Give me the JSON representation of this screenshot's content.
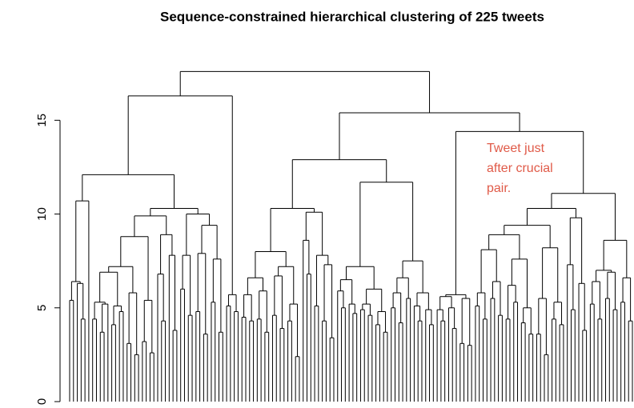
{
  "chart_data": {
    "type": "dendrogram",
    "title": "Sequence-constrained hierarchical clustering of 225 tweets",
    "ylim": [
      0,
      18
    ],
    "yticks": [
      0,
      5,
      10,
      15
    ],
    "color": "#000000",
    "annotation": [
      "Tweet just",
      "after crucial",
      "pair."
    ],
    "annotation_color": "#e05a48",
    "tree": [
      17.6,
      [
        16.3,
        [
          12.1,
          [
            10.7,
            [
              6.4,
              [
                5.4,
                0,
                0
              ],
              [
                6.3,
                0,
                [
                  4.4,
                  0,
                  0
                ]
              ]
            ],
            0
          ],
          [
            10.3,
            [
              9.9,
              [
                8.8,
                [
                  7.2,
                  [
                    6.9,
                    [
                      5.3,
                      [
                        4.4,
                        0,
                        0
                      ],
                      [
                        5.2,
                        [
                          3.7,
                          0,
                          0
                        ],
                        0
                      ]
                    ],
                    [
                      5.1,
                      [
                        4.1,
                        0,
                        0
                      ],
                      [
                        4.8,
                        0,
                        0
                      ]
                    ]
                  ],
                  [
                    5.8,
                    [
                      3.1,
                      0,
                      0
                    ],
                    [
                      2.5,
                      0,
                      0
                    ]
                  ]
                ],
                [
                  5.4,
                  [
                    3.2,
                    0,
                    0
                  ],
                  [
                    2.6,
                    0,
                    0
                  ]
                ]
              ],
              [
                8.9,
                [
                  6.8,
                  0,
                  [
                    4.3,
                    0,
                    0
                  ]
                ],
                [
                  7.8,
                  0,
                  [
                    3.8,
                    0,
                    0
                  ]
                ]
              ]
            ],
            [
              10.0,
              [
                7.8,
                [
                  6.0,
                  0,
                  0
                ],
                [
                  4.6,
                  0,
                  0
                ]
              ],
              [
                9.4,
                [
                  7.9,
                  [
                    4.8,
                    0,
                    0
                  ],
                  [
                    3.6,
                    0,
                    0
                  ]
                ],
                [
                  7.6,
                  [
                    5.3,
                    0,
                    0
                  ],
                  [
                    3.7,
                    0,
                    0
                  ]
                ]
              ]
            ]
          ]
        ],
        [
          5.7,
          [
            5.1,
            0,
            0
          ],
          [
            4.8,
            0,
            0
          ]
        ]
      ],
      [
        15.4,
        [
          12.9,
          [
            10.3,
            [
              8.0,
              [
                6.6,
                [
                  5.7,
                  [
                    4.5,
                    0,
                    0
                  ],
                  [
                    4.3,
                    0,
                    0
                  ]
                ],
                [
                  5.9,
                  [
                    4.4,
                    0,
                    0
                  ],
                  [
                    3.7,
                    0,
                    0
                  ]
                ]
              ],
              [
                7.2,
                [
                  6.7,
                  [
                    4.6,
                    0,
                    0
                  ],
                  [
                    3.9,
                    0,
                    0
                  ]
                ],
                [
                  5.2,
                  [
                    4.3,
                    0,
                    0
                  ],
                  [
                    2.4,
                    0,
                    0
                  ]
                ]
              ]
            ],
            [
              10.1,
              [
                8.6,
                0,
                [
                  6.8,
                  0,
                  0
                ]
              ],
              [
                7.8,
                [
                  5.1,
                  0,
                  0
                ],
                [
                  7.3,
                  [
                    4.3,
                    0,
                    0
                  ],
                  [
                    3.4,
                    0,
                    0
                  ]
                ]
              ]
            ]
          ],
          [
            11.7,
            [
              7.2,
              [
                6.5,
                [
                  5.9,
                  0,
                  [
                    5.0,
                    0,
                    0
                  ]
                ],
                [
                  5.2,
                  0,
                  [
                    4.7,
                    0,
                    0
                  ]
                ]
              ],
              [
                6.0,
                [
                  5.2,
                  [
                    4.9,
                    0,
                    0
                  ],
                  [
                    4.6,
                    0,
                    0
                  ]
                ],
                [
                  4.8,
                  [
                    4.1,
                    0,
                    0
                  ],
                  [
                    3.7,
                    0,
                    0
                  ]
                ]
              ]
            ],
            [
              7.5,
              [
                6.6,
                [
                  5.8,
                  [
                    5.0,
                    0,
                    0
                  ],
                  [
                    4.2,
                    0,
                    0
                  ]
                ],
                [
                  5.5,
                  0,
                  0
                ]
              ],
              [
                5.8,
                [
                  5.1,
                  0,
                  [
                    4.3,
                    0,
                    0
                  ]
                ],
                [
                  4.9,
                  0,
                  [
                    4.1,
                    0,
                    0
                  ]
                ]
              ]
            ]
          ]
        ],
        [
          14.4,
          [
            5.7,
            [
              5.6,
              [
                4.9,
                0,
                [
                  4.3,
                  0,
                  0
                ]
              ],
              [
                5.0,
                0,
                [
                  3.9,
                  0,
                  0
                ]
              ]
            ],
            [
              5.5,
              [
                3.1,
                0,
                0
              ],
              [
                3.0,
                0,
                0
              ]
            ]
          ],
          [
            11.1,
            [
              10.3,
              [
                9.4,
                [
                  8.9,
                  [
                    8.1,
                    [
                      5.8,
                      [
                        5.1,
                        0,
                        0
                      ],
                      [
                        4.4,
                        0,
                        0
                      ]
                    ],
                    [
                      6.4,
                      [
                        5.5,
                        0,
                        0
                      ],
                      [
                        4.6,
                        0,
                        0
                      ]
                    ]
                  ],
                  [
                    7.6,
                    [
                      6.2,
                      [
                        4.4,
                        0,
                        0
                      ],
                      [
                        5.3,
                        0,
                        0
                      ]
                    ],
                    [
                      5.0,
                      [
                        4.2,
                        0,
                        0
                      ],
                      [
                        3.6,
                        0,
                        0
                      ]
                    ]
                  ]
                ],
                [
                  8.2,
                  [
                    5.5,
                    [
                      3.6,
                      0,
                      0
                    ],
                    [
                      2.5,
                      0,
                      0
                    ]
                  ],
                  [
                    5.3,
                    [
                      4.4,
                      0,
                      0
                    ],
                    [
                      4.1,
                      0,
                      0
                    ]
                  ]
                ]
              ],
              [
                9.8,
                [
                  7.3,
                  0,
                  [
                    4.9,
                    0,
                    0
                  ]
                ],
                [
                  6.3,
                  0,
                  [
                    3.8,
                    0,
                    0
                  ]
                ]
              ]
            ],
            [
              8.6,
              [
                7.0,
                [
                  6.4,
                  [
                    5.2,
                    0,
                    0
                  ],
                  [
                    4.4,
                    0,
                    0
                  ]
                ],
                [
                  6.9,
                  [
                    5.5,
                    0,
                    0
                  ],
                  [
                    4.9,
                    0,
                    0
                  ]
                ]
              ],
              [
                6.6,
                [
                  5.3,
                  0,
                  0
                ],
                [
                  4.3,
                  0,
                  0
                ]
              ]
            ]
          ]
        ]
      ]
    ]
  }
}
